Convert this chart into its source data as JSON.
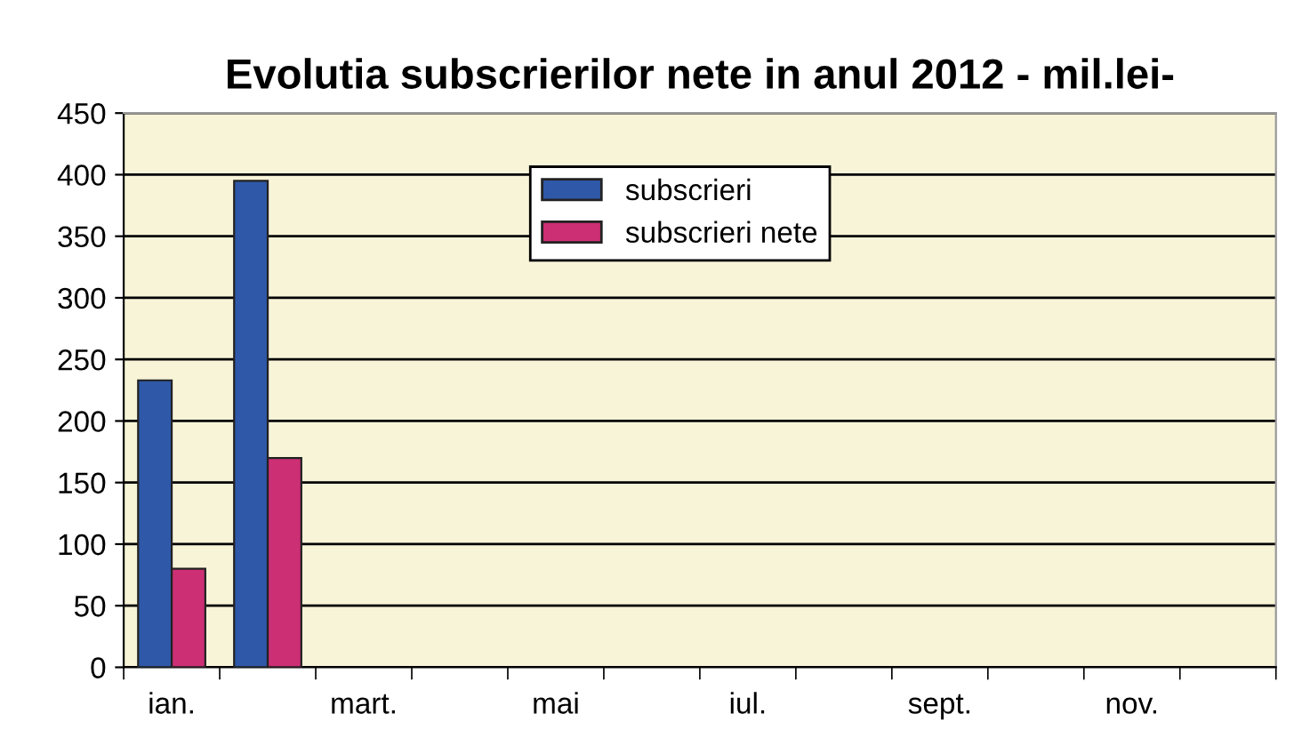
{
  "chart_data": {
    "type": "bar",
    "title": "Evolutia subscrierilor nete in anul 2012 - mil.lei-",
    "categories": [
      "ian.",
      null,
      "mart.",
      null,
      "mai",
      null,
      "iul.",
      null,
      "sept.",
      null,
      "nov.",
      null
    ],
    "series": [
      {
        "name": "subscrieri",
        "color": "#2f58a8",
        "values": [
          233,
          395,
          null,
          null,
          null,
          null,
          null,
          null,
          null,
          null,
          null,
          null
        ]
      },
      {
        "name": "subscrieri nete",
        "color": "#cc2f74",
        "values": [
          80,
          170,
          null,
          null,
          null,
          null,
          null,
          null,
          null,
          null,
          null,
          null
        ]
      }
    ],
    "ylim": [
      0,
      450
    ],
    "yticks": [
      0,
      50,
      100,
      150,
      200,
      250,
      300,
      350,
      400,
      450
    ],
    "grid": "y",
    "legend": "top"
  }
}
